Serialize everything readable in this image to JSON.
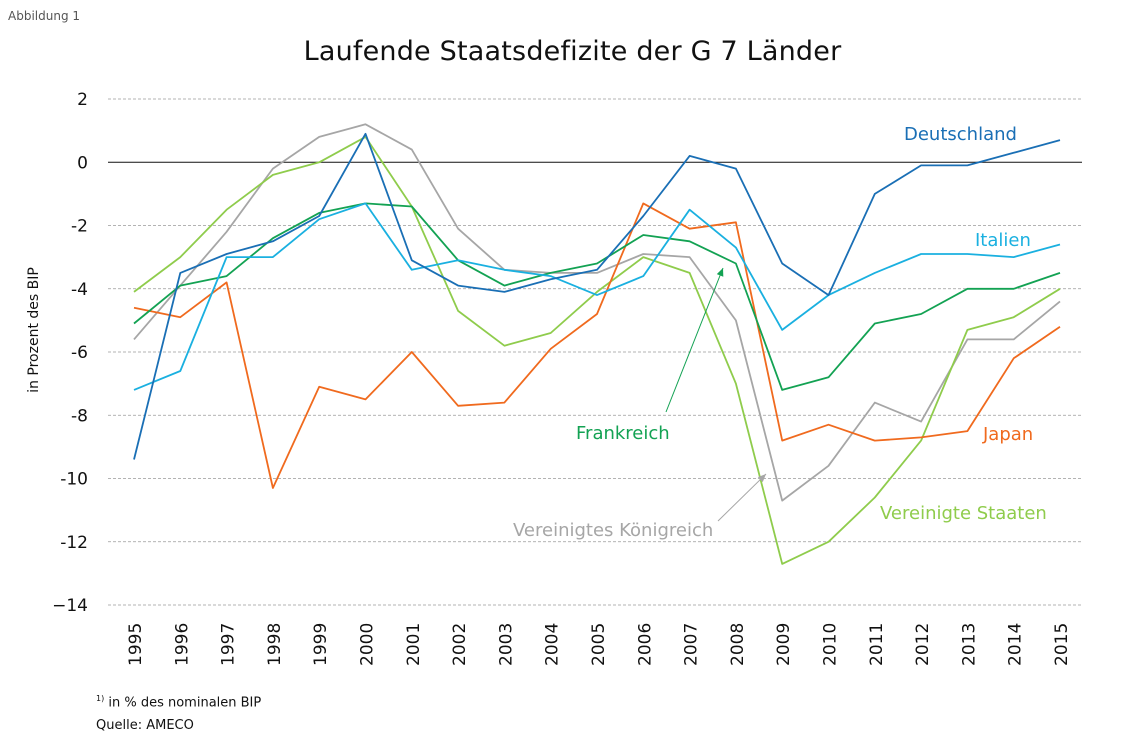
{
  "figure_label": "Abbildung 1",
  "footnote": {
    "marker": "1)",
    "text": "in % des nominalen BIP"
  },
  "source": "Quelle: AMECO",
  "colors": {
    "Deutschland": "#1a6fb5",
    "Italien": "#1ab0e0",
    "Frankreich": "#13a253",
    "Japan": "#f06a1e",
    "Vereinigte Staaten": "#8fcc4c",
    "Vereinigtes Königreich": "#a6a6a6",
    "grid": "#9a9a9a",
    "zero_line": "#111111"
  },
  "chart_data": {
    "type": "line",
    "title": "Laufende Staatsdefizite der G 7 Länder",
    "xlabel": "",
    "ylabel": "in Prozent des BIP",
    "ylim": [
      -14,
      2
    ],
    "yticks": [
      2,
      0,
      -2,
      -4,
      -6,
      -8,
      -10,
      -12,
      -14
    ],
    "ytick_labels": [
      "2",
      "0",
      "-2",
      "-4",
      "-6",
      "-8",
      "-10",
      "-12",
      "−14"
    ],
    "grid": "horizontal dashed",
    "x": [
      "1995",
      "1996",
      "1997",
      "1998",
      "1999",
      "2000",
      "2001",
      "2002",
      "2003",
      "2004",
      "2005",
      "2006",
      "2007",
      "2008",
      "2009",
      "2010",
      "2011",
      "2012",
      "2013",
      "2014",
      "2015"
    ],
    "series": [
      {
        "name": "Deutschland",
        "values": [
          -9.4,
          -3.5,
          -2.9,
          -2.5,
          -1.7,
          0.9,
          -3.1,
          -3.9,
          -4.1,
          -3.7,
          -3.4,
          -1.7,
          0.2,
          -0.2,
          -3.2,
          -4.2,
          -1.0,
          -0.1,
          -0.1,
          0.3,
          0.7
        ]
      },
      {
        "name": "Italien",
        "values": [
          -7.2,
          -6.6,
          -3.0,
          -3.0,
          -1.8,
          -1.3,
          -3.4,
          -3.1,
          -3.4,
          -3.6,
          -4.2,
          -3.6,
          -1.5,
          -2.7,
          -5.3,
          -4.2,
          -3.5,
          -2.9,
          -2.9,
          -3.0,
          -2.6
        ]
      },
      {
        "name": "Frankreich",
        "values": [
          -5.1,
          -3.9,
          -3.6,
          -2.4,
          -1.6,
          -1.3,
          -1.4,
          -3.1,
          -3.9,
          -3.5,
          -3.2,
          -2.3,
          -2.5,
          -3.2,
          -7.2,
          -6.8,
          -5.1,
          -4.8,
          -4.0,
          -4.0,
          -3.5
        ]
      },
      {
        "name": "Japan",
        "values": [
          -4.6,
          -4.9,
          -3.8,
          -10.3,
          -7.1,
          -7.5,
          -6.0,
          -7.7,
          -7.6,
          -5.9,
          -4.8,
          -1.3,
          -2.1,
          -1.9,
          -8.8,
          -8.3,
          -8.8,
          -8.7,
          -8.5,
          -6.2,
          -5.2
        ]
      },
      {
        "name": "Vereinigte Staaten",
        "values": [
          -4.1,
          -3.0,
          -1.5,
          -0.4,
          0.0,
          0.8,
          -1.4,
          -4.7,
          -5.8,
          -5.4,
          -4.1,
          -3.0,
          -3.5,
          -7.0,
          -12.7,
          -12.0,
          -10.6,
          -8.8,
          -5.3,
          -4.9,
          -4.0
        ]
      },
      {
        "name": "Vereinigtes Königreich",
        "values": [
          -5.6,
          -3.9,
          -2.2,
          -0.2,
          0.8,
          1.2,
          0.4,
          -2.1,
          -3.4,
          -3.5,
          -3.5,
          -2.9,
          -3.0,
          -5.0,
          -10.7,
          -9.6,
          -7.6,
          -8.2,
          -5.6,
          -5.6,
          -4.4
        ]
      }
    ],
    "labels": [
      {
        "series": "Deutschland",
        "text": "Deutschland"
      },
      {
        "series": "Italien",
        "text": "Italien"
      },
      {
        "series": "Frankreich",
        "text": "Frankreich"
      },
      {
        "series": "Japan",
        "text": "Japan"
      },
      {
        "series": "Vereinigte Staaten",
        "text": "Vereinigte Staaten"
      },
      {
        "series": "Vereinigtes Königreich",
        "text": "Vereinigtes Königreich"
      }
    ]
  }
}
